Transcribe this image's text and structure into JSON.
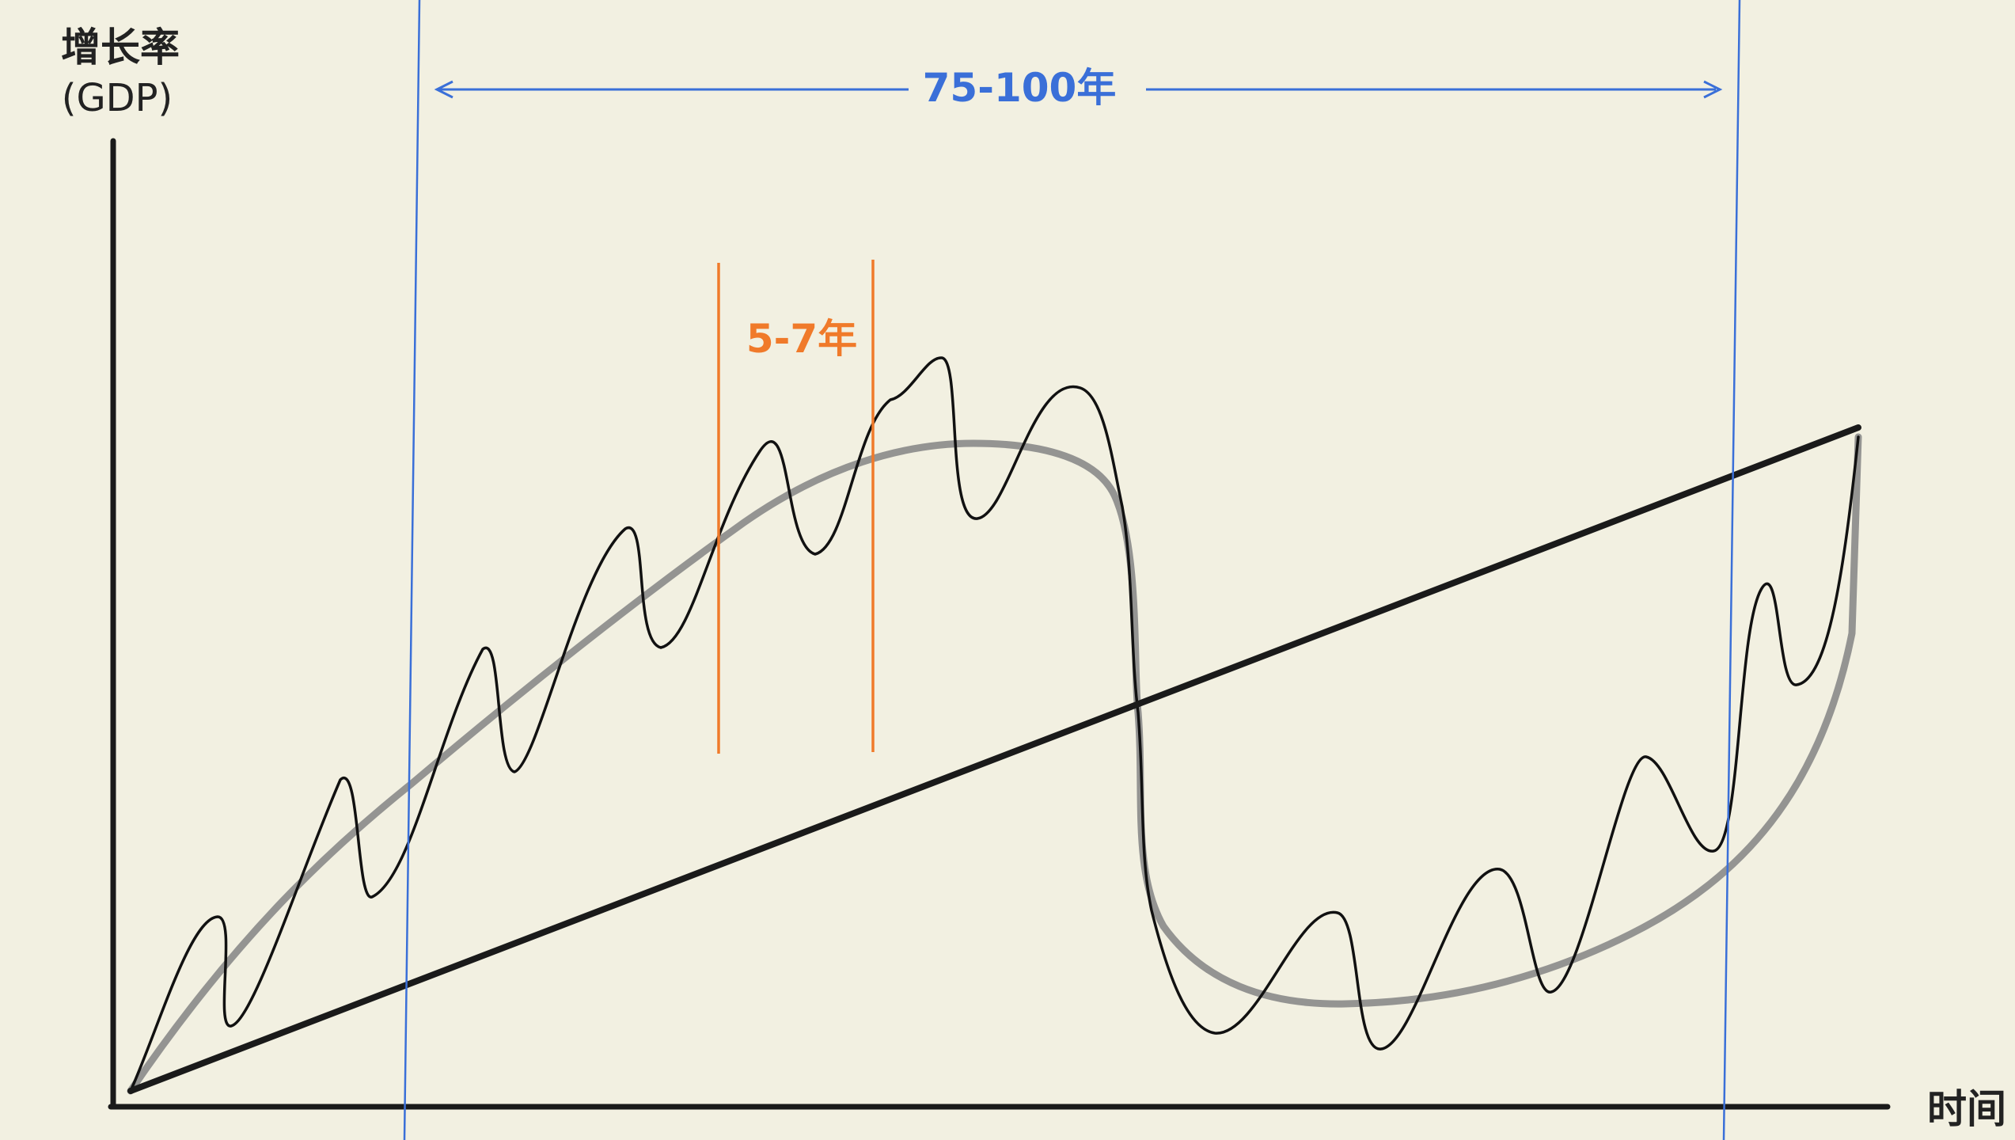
{
  "y_axis_label_line1": "增长率",
  "y_axis_label_line2": "(GDP)",
  "x_axis_label": "时间",
  "long_cycle_label": "75-100年",
  "short_cycle_label": "5-7年",
  "colors": {
    "background": "#f2f0e1",
    "axis": "#1a1a1a",
    "trend": "#1a1a1a",
    "long_wave": "#8a8a8a",
    "short_wave": "#111111",
    "long_cycle": "#3a6fd8",
    "short_cycle": "#f07a2a"
  }
}
